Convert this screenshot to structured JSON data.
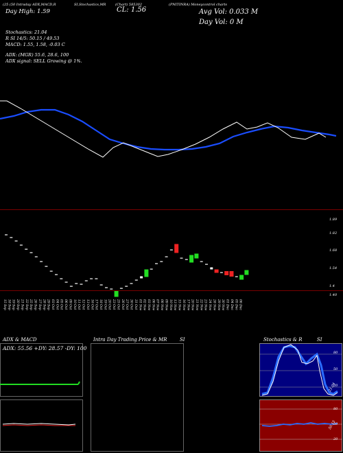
{
  "header": {
    "top_labels": [
      "(25 (50 Intraday ADX,MACD,R",
      "SI,Stochastics,MR",
      "(Chart) 585302",
      "(PNITINRA) Moneycontrol charts"
    ],
    "day_high": "Day High: 1.59",
    "close": "CL: 1.56",
    "avg_vol": "Avg Vol: 0.033 M",
    "day_vol": "Day Vol: 0   M",
    "stoch_line": "Stochastics: 21.04",
    "rsi_line": "R                    SI 14/5: 50.15 / 49.53",
    "macd_line": "MACD: 1.55,  1.58,  -0.03 C",
    "adx_line": "ADX:                       (MGR) 55.6,  28.6,  100",
    "adx_signal": "ADX  signal: SELL  Growing @ 1%."
  },
  "colors": {
    "ma_line": "#1a4dff",
    "price_line": "#ffffff",
    "up_candle": "#22dd22",
    "down_candle": "#ee2222",
    "separator": "#7a0000",
    "stoch_bg": "#000080",
    "rsi_bg": "#8a0000"
  },
  "candles": {
    "price_labels": [
      "1.89",
      "1.82",
      "1.68",
      "1.54",
      "1.4",
      "1.40"
    ],
    "dates": [
      "15 Sep",
      "18 Sep",
      "19 Sep",
      "20 Sep",
      "21 Sep",
      "22 Sep",
      "25 Sep",
      "26 Sep",
      "27 Sep",
      "28 Sep",
      "29 Sep",
      "03 Oct",
      "04 Oct",
      "05 Oct",
      "06 Oct",
      "09 Oct",
      "10 Oct",
      "11 Oct",
      "12 Oct",
      "13 Oct",
      "16 Oct",
      "17 Oct",
      "18 Oct",
      "19 Oct",
      "20 Oct",
      "23 Oct",
      "25 Oct",
      "26 Oct",
      "27 Oct",
      "30 Oct",
      "31 Oct",
      "01 Nov",
      "02 Nov",
      "03 Nov",
      "06 Nov",
      "07 Nov",
      "08 Nov",
      "09 Nov",
      "10 Nov",
      "13 Nov",
      "15 Nov",
      "16 Nov",
      "17 Nov",
      "20 Nov",
      "21 Nov",
      "22 Nov",
      "23 Nov",
      "24 Nov",
      "28 Nov",
      "29 Nov",
      "30 Nov",
      "01 Dec",
      "04 Dec",
      "05 Dec",
      "06 Dec"
    ]
  },
  "panels": {
    "adx_title": "ADX  & MACD",
    "adx_readout": "ADX: 55.56  +DY: 28.57  -DY: 100",
    "intraday_title": "Intra Day Trading Price  & MR",
    "intraday_suffix": "SI",
    "stoch_title": "Stochastics & R",
    "stoch_suffix": "SI",
    "stoch_ticks": [
      "80",
      "50",
      "20"
    ],
    "stoch_value": "21.04",
    "rsi_ticks": [
      "80",
      "50",
      "20"
    ],
    "rsi_value": "50.15"
  }
}
